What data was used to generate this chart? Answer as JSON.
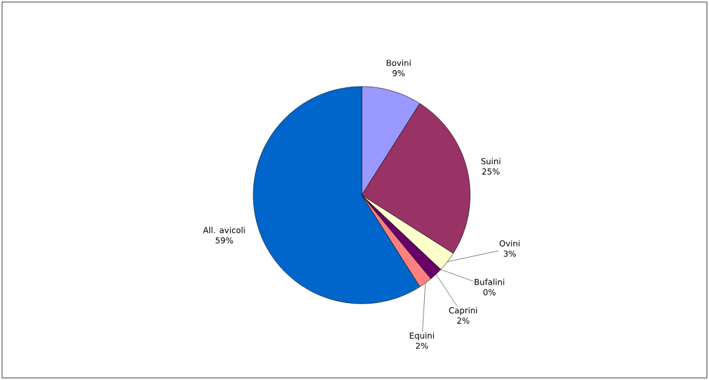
{
  "chart_data": {
    "type": "pie",
    "categories": [
      "Bovini",
      "Suini",
      "Ovini",
      "Bufalini",
      "Caprini",
      "Equini",
      "All. avicoli"
    ],
    "values": [
      9,
      25,
      3,
      0,
      2,
      2,
      59
    ],
    "colors": [
      "#9999ff",
      "#993366",
      "#ffffcc",
      "#ccffff",
      "#660066",
      "#ff8080",
      "#0066cc"
    ],
    "value_labels": [
      "9%",
      "25%",
      "3%",
      "0%",
      "2%",
      "2%",
      "59%"
    ]
  }
}
